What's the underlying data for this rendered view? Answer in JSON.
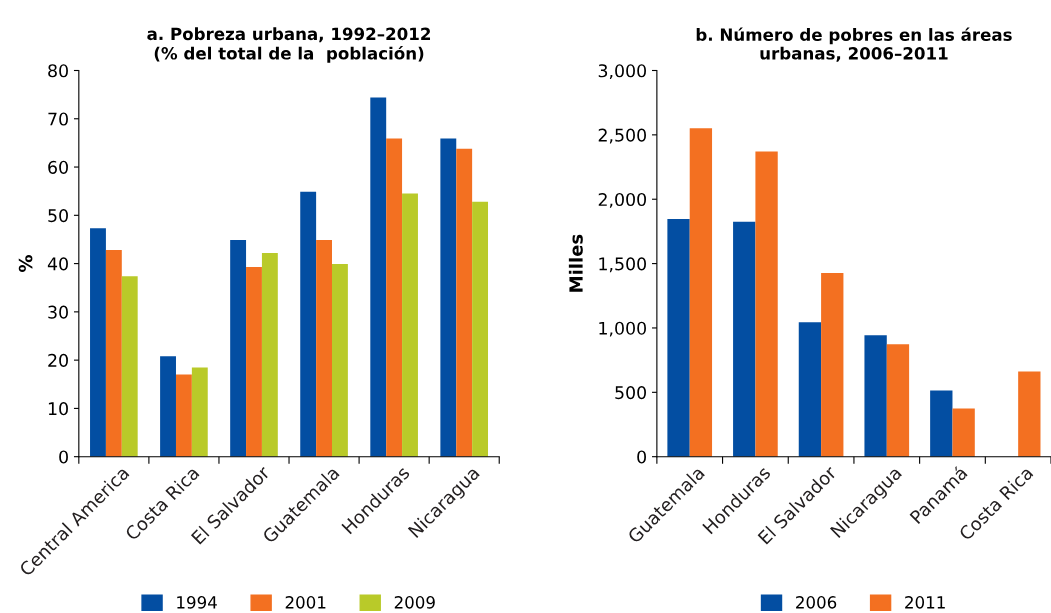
{
  "chart_data": [
    {
      "type": "bar",
      "title": "a. Pobreza urbana, 1992–2012\n(% del total de la  población)",
      "ylabel": "%",
      "categories": [
        "Central America",
        "Costa Rica",
        "El Salvador",
        "Guatemala",
        "Honduras",
        "Nicaragua"
      ],
      "series": [
        {
          "name": "1994",
          "color": "#034ea2",
          "values": [
            47.3,
            20.8,
            44.9,
            54.9,
            74.4,
            65.9
          ]
        },
        {
          "name": "2001",
          "color": "#f37021",
          "values": [
            42.8,
            17.0,
            39.3,
            44.9,
            65.9,
            63.8
          ]
        },
        {
          "name": "2009",
          "color": "#b9ca29",
          "values": [
            37.4,
            18.5,
            42.2,
            39.9,
            54.5,
            52.8
          ]
        }
      ],
      "ylim": [
        0,
        80
      ],
      "yticks": [
        0,
        10,
        20,
        30,
        40,
        50,
        60,
        70,
        80
      ],
      "grid": false,
      "legend": "bottom"
    },
    {
      "type": "bar",
      "title": "b. Número de pobres en las áreas\nurbanas, 2006–2011",
      "ylabel": "Milles",
      "categories": [
        "Guatemala",
        "Honduras",
        "El Salvador",
        "Nicaragua",
        "Panamá",
        "Costa Rica"
      ],
      "series": [
        {
          "name": "2006",
          "color": "#034ea2",
          "values": [
            1846,
            1825,
            1045,
            943,
            514,
            null
          ]
        },
        {
          "name": "2011",
          "color": "#f37021",
          "values": [
            2551,
            2371,
            1427,
            873,
            374,
            662
          ]
        }
      ],
      "ylim": [
        0,
        3000
      ],
      "yticks": [
        {
          "value": 0,
          "label": "0"
        },
        {
          "value": 500,
          "label": "500"
        },
        {
          "value": 1000,
          "label": "1,000"
        },
        {
          "value": 1500,
          "label": "1,500"
        },
        {
          "value": 2000,
          "label": "2,000"
        },
        {
          "value": 2500,
          "label": "2,500"
        },
        {
          "value": 3000,
          "label": "3,000"
        }
      ],
      "grid": false,
      "legend": "bottom"
    }
  ]
}
